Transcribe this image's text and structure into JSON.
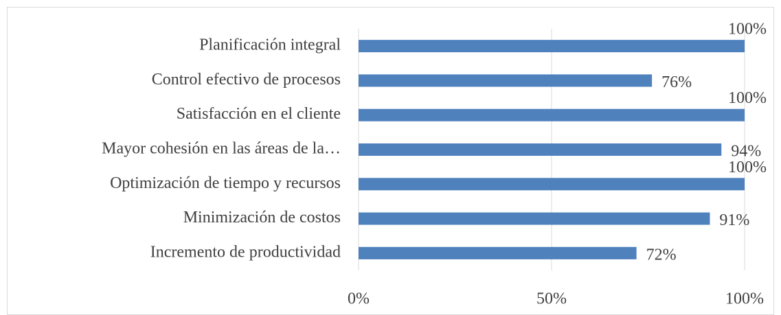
{
  "chart_data": {
    "type": "bar",
    "orientation": "horizontal",
    "categories": [
      "Planificación integral",
      "Control efectivo de procesos",
      "Satisfacción en el cliente",
      "Mayor cohesión en las áreas de la…",
      "Optimización de tiempo y recursos",
      "Minimización de costos",
      "Incremento de productividad"
    ],
    "values": [
      100,
      76,
      100,
      94,
      100,
      91,
      72
    ],
    "value_labels": [
      "100%",
      "76%",
      "100%",
      "94%",
      "100%",
      "91%",
      "72%"
    ],
    "color": "#4f81bd",
    "xlim": [
      0,
      100
    ],
    "xticks": [
      {
        "value": 0,
        "label": "0%"
      },
      {
        "value": 50,
        "label": "50%"
      },
      {
        "value": 100,
        "label": "100%"
      }
    ],
    "grid": true
  }
}
